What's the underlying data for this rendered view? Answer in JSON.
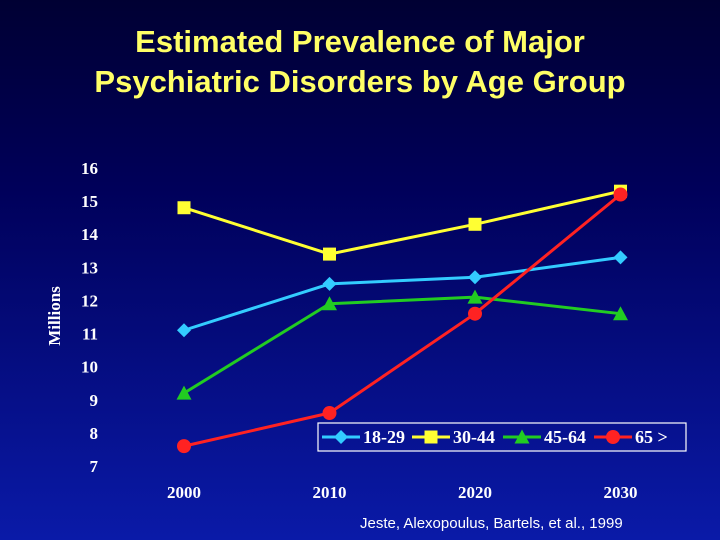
{
  "title_lines": [
    "Estimated Prevalence of Major",
    "Psychiatric Disorders by Age Group"
  ],
  "source": "Jeste, Alexopoulus, Bartels, et al., 1999",
  "chart_data": {
    "type": "line",
    "title": "Estimated Prevalence of Major Psychiatric Disorders by Age Group",
    "xlabel": "",
    "ylabel": "Millions",
    "categories": [
      "2000",
      "2010",
      "2020",
      "2030"
    ],
    "ylim": [
      7,
      16
    ],
    "yticks": [
      16,
      15,
      14,
      13,
      12,
      11,
      10,
      9,
      8,
      7
    ],
    "grid": false,
    "legend_position": "bottom-right",
    "series": [
      {
        "name": "18-29",
        "values": [
          11.1,
          12.5,
          12.7,
          13.3
        ],
        "color": "#33ccff",
        "marker": "diamond"
      },
      {
        "name": "30-44",
        "values": [
          14.8,
          13.4,
          14.3,
          15.3
        ],
        "color": "#ffff33",
        "marker": "square"
      },
      {
        "name": "45-64",
        "values": [
          9.2,
          11.9,
          12.1,
          11.6
        ],
        "color": "#22cc22",
        "marker": "triangle"
      },
      {
        "name": "65 >",
        "values": [
          7.6,
          8.6,
          11.6,
          15.2
        ],
        "color": "#ff2222",
        "marker": "circle"
      }
    ]
  }
}
